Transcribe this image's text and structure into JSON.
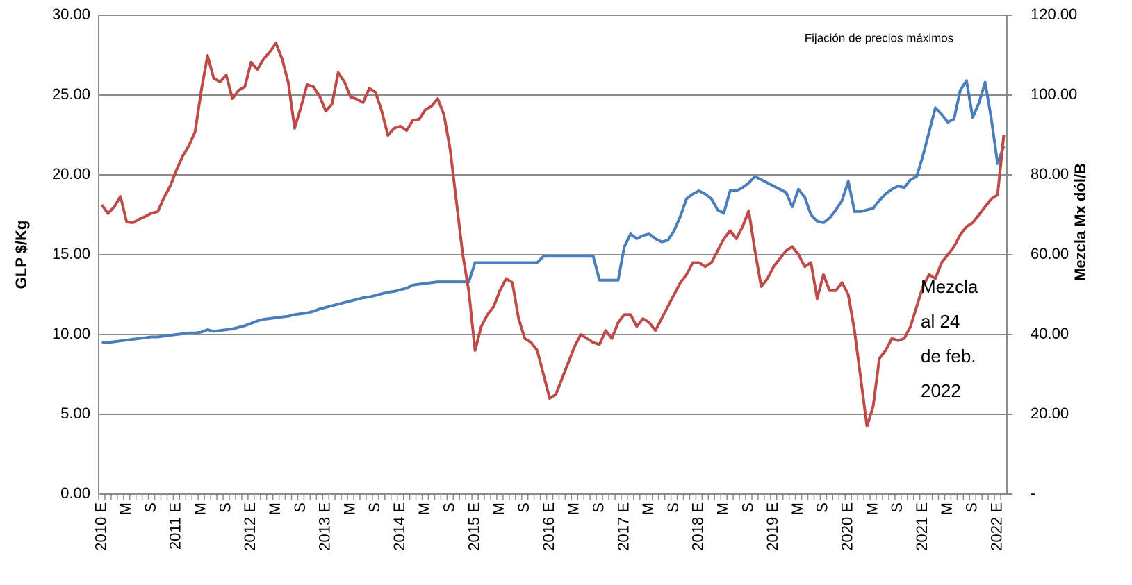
{
  "chart_data": {
    "type": "line",
    "y_label": "GLP $/Kg",
    "y2_label": "Mezcla Mx dól/B",
    "annotation_top": "Fijación de precios máximos",
    "annotation_lines": [
      "Mezcla",
      "al 24",
      "de feb.",
      "2022"
    ],
    "categories": [
      "2010 E",
      null,
      null,
      null,
      "M",
      null,
      null,
      null,
      "S",
      null,
      null,
      null,
      "2011 E",
      null,
      null,
      null,
      "M",
      null,
      null,
      null,
      "S",
      null,
      null,
      null,
      "2012 E",
      null,
      null,
      null,
      "M",
      null,
      null,
      null,
      "S",
      null,
      null,
      null,
      "2013 E",
      null,
      null,
      null,
      "M",
      null,
      null,
      null,
      "S",
      null,
      null,
      null,
      "2014 E",
      null,
      null,
      null,
      "M",
      null,
      null,
      null,
      "S",
      null,
      null,
      null,
      "2015 E",
      null,
      null,
      null,
      "M",
      null,
      null,
      null,
      "S",
      null,
      null,
      null,
      "2016 E",
      null,
      null,
      null,
      "M",
      null,
      null,
      null,
      "S",
      null,
      null,
      null,
      "2017 E",
      null,
      null,
      null,
      "M",
      null,
      null,
      null,
      "S",
      null,
      null,
      null,
      "2018 E",
      null,
      null,
      null,
      "M",
      null,
      null,
      null,
      "S",
      null,
      null,
      null,
      "2019 E",
      null,
      null,
      null,
      "M",
      null,
      null,
      null,
      "S",
      null,
      null,
      null,
      "2020 E",
      null,
      null,
      null,
      "M",
      null,
      null,
      null,
      "S",
      null,
      null,
      null,
      "2021 E",
      null,
      null,
      null,
      "M",
      null,
      null,
      null,
      "S",
      null,
      null,
      null,
      "2022 E",
      null
    ],
    "series": [
      {
        "color": "#4a7ebb",
        "axis": "y",
        "values": [
          9.5,
          9.5,
          9.55,
          9.6,
          9.65,
          9.7,
          9.75,
          9.8,
          9.85,
          9.85,
          9.9,
          9.95,
          10.0,
          10.05,
          10.1,
          10.1,
          10.15,
          10.3,
          10.2,
          10.25,
          10.3,
          10.35,
          10.45,
          10.55,
          10.7,
          10.85,
          10.95,
          11.0,
          11.05,
          11.1,
          11.15,
          11.25,
          11.3,
          11.35,
          11.45,
          11.6,
          11.7,
          11.8,
          11.9,
          12.0,
          12.1,
          12.2,
          12.3,
          12.35,
          12.45,
          12.55,
          12.65,
          12.7,
          12.8,
          12.9,
          13.1,
          13.15,
          13.2,
          13.25,
          13.3,
          13.3,
          13.3,
          13.3,
          13.3,
          13.3,
          14.5,
          14.5,
          14.5,
          14.5,
          14.5,
          14.5,
          14.5,
          14.5,
          14.5,
          14.5,
          14.5,
          14.9,
          14.9,
          14.9,
          14.9,
          14.9,
          14.9,
          14.9,
          14.9,
          14.9,
          13.4,
          13.4,
          13.4,
          13.4,
          15.5,
          16.3,
          16.0,
          16.2,
          16.3,
          16.0,
          15.8,
          15.9,
          16.5,
          17.4,
          18.5,
          18.8,
          19.0,
          18.8,
          18.5,
          17.8,
          17.6,
          19.0,
          19.0,
          19.2,
          19.5,
          19.9,
          19.7,
          19.5,
          19.3,
          19.1,
          18.9,
          18.0,
          19.1,
          18.6,
          17.5,
          17.1,
          17.0,
          17.3,
          17.8,
          18.4,
          19.6,
          17.7,
          17.7,
          17.8,
          17.9,
          18.4,
          18.8,
          19.1,
          19.3,
          19.2,
          19.7,
          19.9,
          21.2,
          22.7,
          24.2,
          23.8,
          23.3,
          23.5,
          25.3,
          25.9,
          23.6,
          24.5,
          25.8,
          23.5,
          20.7,
          21.8
        ]
      },
      {
        "color": "#be4b48",
        "axis": "y2",
        "values": [
          72.5,
          70.3,
          72,
          74.6,
          68.2,
          68,
          68.9,
          69.6,
          70.4,
          70.8,
          74.3,
          77.2,
          81.2,
          84.7,
          87.3,
          90.8,
          101.2,
          109.9,
          104.2,
          103.3,
          105,
          99.1,
          101.2,
          102.1,
          108.2,
          106.4,
          109,
          110.8,
          113,
          109,
          103,
          91.7,
          96.9,
          102.6,
          102.1,
          99.8,
          96,
          97.7,
          105.6,
          103.3,
          99.5,
          99,
          98.1,
          101.7,
          100.7,
          96,
          89.9,
          91.7,
          92.2,
          91.1,
          93.7,
          93.9,
          96.3,
          97.2,
          99.1,
          95.1,
          86.4,
          73.4,
          60.3,
          50.8,
          36,
          42,
          45,
          47,
          51,
          54,
          53,
          44,
          39,
          38,
          36,
          30,
          24,
          25,
          29,
          33,
          37,
          40,
          39,
          38,
          37.5,
          41,
          39,
          43,
          45,
          45,
          42,
          44,
          43,
          41,
          44,
          47,
          50,
          53,
          55,
          58,
          58,
          57,
          58,
          61,
          64,
          66,
          64,
          67,
          71,
          61,
          52,
          54,
          57,
          59,
          61,
          62,
          60,
          57,
          58,
          49,
          55,
          51,
          51,
          53,
          50,
          41,
          29,
          17,
          22,
          34,
          36,
          39,
          38.5,
          39,
          42,
          47,
          52,
          55,
          54,
          58,
          60,
          62,
          65,
          67,
          68,
          70,
          72,
          74,
          75,
          90
        ]
      }
    ],
    "ylim": [
      0,
      30
    ],
    "yticks": [
      {
        "value": 0,
        "label": "0.00"
      },
      {
        "value": 5,
        "label": "5.00"
      },
      {
        "value": 10,
        "label": "10.00"
      },
      {
        "value": 15,
        "label": "15.00"
      },
      {
        "value": 20,
        "label": "20.00"
      },
      {
        "value": 25,
        "label": "25.00"
      },
      {
        "value": 30,
        "label": "30.00"
      }
    ],
    "y2lim": [
      0,
      120
    ],
    "y2ticks": [
      {
        "value": 0,
        "label": "-"
      },
      {
        "value": 20,
        "label": "20.00"
      },
      {
        "value": 40,
        "label": "40.00"
      },
      {
        "value": 60,
        "label": "60.00"
      },
      {
        "value": 80,
        "label": "80.00"
      },
      {
        "value": 100,
        "label": "100.00"
      },
      {
        "value": 120,
        "label": "120.00"
      }
    ],
    "grid": true
  }
}
